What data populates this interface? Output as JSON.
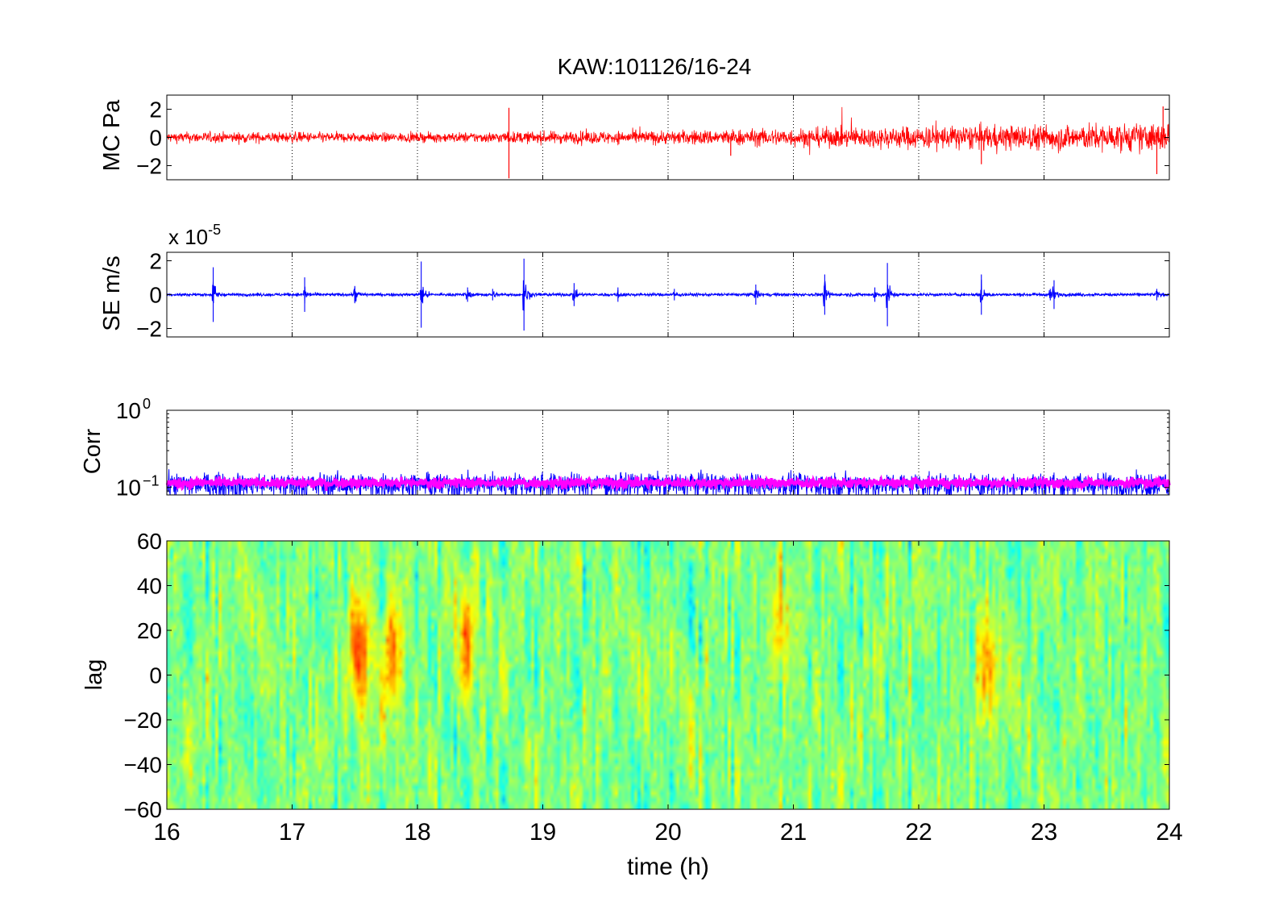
{
  "figure_title": "KAW:101126/16-24",
  "chart_data": [
    {
      "type": "line",
      "panel": "mc",
      "ylabel": "MC Pa",
      "xlim": [
        16,
        24
      ],
      "ylim": [
        -3,
        3
      ],
      "yticks": [
        -2,
        0,
        2
      ],
      "grid": "x-dotted",
      "series": [
        {
          "color": "#ff0000",
          "amplitude_envelope": [
            {
              "x": 16,
              "a": 0.35
            },
            {
              "x": 17,
              "a": 0.35
            },
            {
              "x": 18,
              "a": 0.3
            },
            {
              "x": 19,
              "a": 0.4
            },
            {
              "x": 20,
              "a": 0.45
            },
            {
              "x": 21,
              "a": 0.6
            },
            {
              "x": 22,
              "a": 0.75
            },
            {
              "x": 23,
              "a": 0.85
            },
            {
              "x": 24,
              "a": 0.95
            }
          ]
        }
      ],
      "spikes": [
        {
          "x": 18.73,
          "y": -2.9
        },
        {
          "x": 18.73,
          "y": 2.1
        },
        {
          "x": 22.5,
          "y": -1.9
        },
        {
          "x": 23.9,
          "y": -2.6
        },
        {
          "x": 23.95,
          "y": 2.2
        },
        {
          "x": 20.5,
          "y": -1.3
        }
      ]
    },
    {
      "type": "line",
      "panel": "se",
      "ylabel": "SE m/s",
      "exponent_label": "x 10",
      "exponent": "-5",
      "xlim": [
        16,
        24
      ],
      "ylim": [
        -2.5,
        2.5
      ],
      "yticks": [
        -2,
        0,
        2
      ],
      "grid": "x-dotted",
      "series": [
        {
          "color": "#0000ff",
          "baseline_amplitude": 0.08
        }
      ],
      "events": [
        {
          "x": 16.37,
          "amp": 1.9
        },
        {
          "x": 17.1,
          "amp": 1.2
        },
        {
          "x": 17.5,
          "amp": 0.6
        },
        {
          "x": 17.5,
          "amp": 0.5
        },
        {
          "x": 18.03,
          "amp": 2.3
        },
        {
          "x": 18.4,
          "amp": 0.5
        },
        {
          "x": 18.6,
          "amp": 0.4
        },
        {
          "x": 18.85,
          "amp": 2.5
        },
        {
          "x": 19.25,
          "amp": 0.8
        },
        {
          "x": 19.6,
          "amp": 0.5
        },
        {
          "x": 20.05,
          "amp": 0.4
        },
        {
          "x": 20.7,
          "amp": 0.7
        },
        {
          "x": 21.25,
          "amp": 1.4
        },
        {
          "x": 21.65,
          "amp": 0.5
        },
        {
          "x": 21.75,
          "amp": 2.2
        },
        {
          "x": 22.5,
          "amp": 1.4
        },
        {
          "x": 23.05,
          "amp": 0.4
        },
        {
          "x": 23.08,
          "amp": 1.0
        },
        {
          "x": 23.9,
          "amp": 0.4
        }
      ]
    },
    {
      "type": "line",
      "panel": "corr",
      "ylabel": "Corr",
      "yscale": "log",
      "xlim": [
        16,
        24
      ],
      "ylim": [
        0.08,
        1
      ],
      "ytick_labels": [
        {
          "value": 1,
          "base": "10",
          "exp": "0"
        },
        {
          "value": 0.1,
          "base": "10",
          "exp": "−1"
        }
      ],
      "grid": "x-dotted",
      "series": [
        {
          "color": "#0000ff",
          "center": 0.11,
          "spread": 0.04
        },
        {
          "color": "#ff00ff",
          "center": 0.115,
          "spread": 0.015
        }
      ]
    },
    {
      "type": "heatmap",
      "panel": "lag",
      "ylabel": "lag",
      "xlabel": "time (h)",
      "xlim": [
        16,
        24
      ],
      "ylim": [
        -60,
        60
      ],
      "xticks": [
        16,
        17,
        18,
        19,
        20,
        21,
        22,
        23,
        24
      ],
      "yticks": [
        -60,
        -40,
        -20,
        0,
        20,
        40,
        60
      ],
      "colormap": "jet",
      "hotspots": [
        {
          "x": 17.55,
          "y": 10,
          "v": 0.85
        },
        {
          "x": 17.8,
          "y": 10,
          "v": 0.75
        },
        {
          "x": 18.4,
          "y": 15,
          "v": 0.7
        },
        {
          "x": 22.55,
          "y": 5,
          "v": 0.72
        },
        {
          "x": 20.9,
          "y": 20,
          "v": 0.66
        }
      ]
    }
  ]
}
